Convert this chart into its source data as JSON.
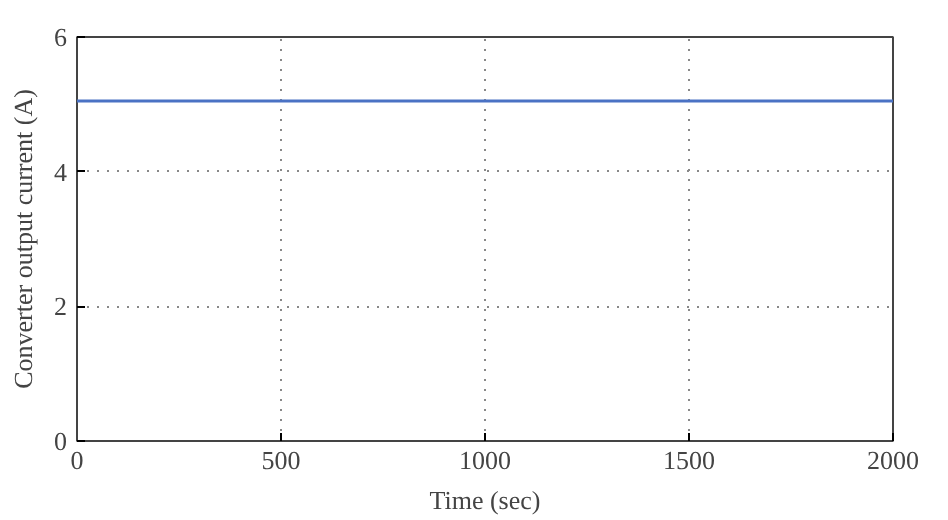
{
  "chart_data": {
    "type": "line",
    "xlabel": "Time (sec)",
    "ylabel": "Converter output current (A)",
    "x": [
      0,
      2000
    ],
    "series": [
      {
        "color": "#4a72c4",
        "values": [
          5.05,
          5.05
        ]
      }
    ],
    "xlim": [
      0,
      2000
    ],
    "ylim": [
      0,
      6
    ],
    "xticks": [
      0,
      500,
      1000,
      1500,
      2000
    ],
    "yticks": [
      0,
      2,
      4,
      6
    ],
    "grid": true,
    "line_style": "solid"
  }
}
